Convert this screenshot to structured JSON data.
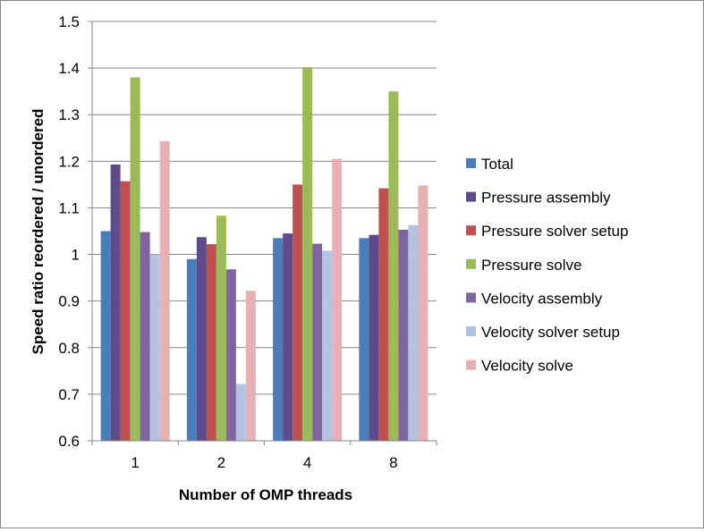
{
  "chart_data": {
    "type": "bar",
    "xlabel": "Number of OMP threads",
    "ylabel": "Speed ratio reordered / unordered",
    "ylim": [
      0.6,
      1.5
    ],
    "yticks": [
      "0.6",
      "0.7",
      "0.8",
      "0.9",
      "1",
      "1.1",
      "1.2",
      "1.3",
      "1.4",
      "1.5"
    ],
    "categories": [
      "1",
      "2",
      "4",
      "8"
    ],
    "grid": true,
    "legend_position": "right",
    "series": [
      {
        "name": "Total",
        "color": "#4A7EBB",
        "values": [
          1.05,
          0.99,
          1.035,
          1.035
        ]
      },
      {
        "name": "Pressure assembly",
        "color": "#5F4A8B",
        "values": [
          1.193,
          1.037,
          1.045,
          1.042
        ]
      },
      {
        "name": "Pressure solver setup",
        "color": "#C0504D",
        "values": [
          1.157,
          1.022,
          1.15,
          1.142
        ]
      },
      {
        "name": "Pressure solve",
        "color": "#9BBB59",
        "values": [
          1.38,
          1.083,
          1.402,
          1.35
        ]
      },
      {
        "name": "Velocity assembly",
        "color": "#8064A2",
        "values": [
          1.048,
          0.968,
          1.023,
          1.053
        ]
      },
      {
        "name": "Velocity solver setup",
        "color": "#B4C3E1",
        "values": [
          1.0,
          0.722,
          1.008,
          1.063
        ]
      },
      {
        "name": "Velocity solve",
        "color": "#E6B0B4",
        "values": [
          1.243,
          0.922,
          1.205,
          1.148
        ]
      }
    ]
  }
}
